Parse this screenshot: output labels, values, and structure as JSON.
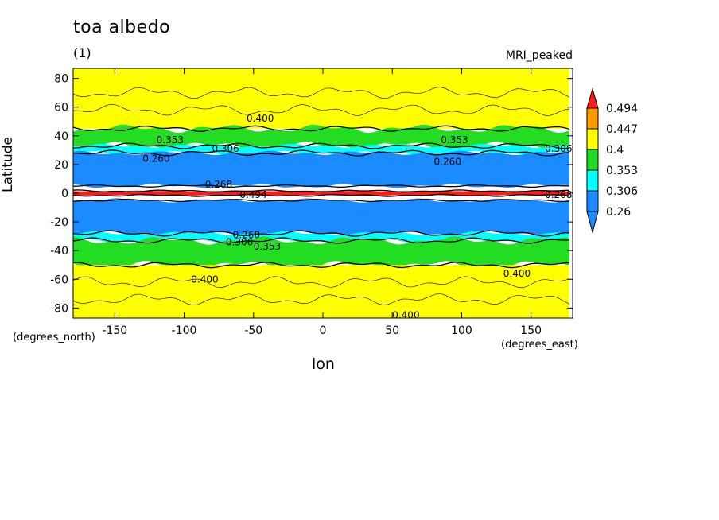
{
  "header": {
    "title": "toa albedo",
    "subtitle": "(1)",
    "model": "MRI_peaked"
  },
  "axes": {
    "xlabel": "lon",
    "ylabel": "Latitude",
    "x_units": "(degrees_east)",
    "y_units": "(degrees_north)"
  },
  "chart_data": {
    "type": "heatmap",
    "title": "toa albedo",
    "subtitle": "(1)",
    "xlabel": "lon",
    "ylabel": "Latitude",
    "xlim": [
      -180,
      180
    ],
    "ylim": [
      -87,
      87
    ],
    "x_ticks": [
      -150,
      -100,
      -50,
      0,
      50,
      100,
      150
    ],
    "y_ticks": [
      -80,
      -60,
      -40,
      -20,
      0,
      20,
      40,
      60,
      80
    ],
    "levels": [
      0.26,
      0.306,
      0.353,
      0.4,
      0.447,
      0.494
    ],
    "level_labels": [
      "0.26",
      "0.306",
      "0.353",
      "0.4",
      "0.447",
      "0.494"
    ],
    "colors": {
      "below_0.26": "#1a8cff",
      "0.26-0.306": "#1a8cff",
      "0.306-0.353": "#00ffff",
      "0.353-0.4": "#22dd22",
      "0.4-0.447": "#ffff00",
      "0.447-0.494": "#ff9900",
      "above_0.494": "#ff1a1a"
    },
    "contour_labels": [
      "0.400",
      "0.353",
      "0.306",
      "0.260",
      "0.268",
      "0.494"
    ],
    "zonal_bands": [
      {
        "lat_from": 45,
        "lat_to": 87,
        "value_range": "0.4-0.447"
      },
      {
        "lat_from": 33,
        "lat_to": 45,
        "value_range": "0.353-0.4"
      },
      {
        "lat_from": 28,
        "lat_to": 33,
        "value_range": "0.306-0.353"
      },
      {
        "lat_from": 5,
        "lat_to": 28,
        "value_range": "0.26-0.306"
      },
      {
        "lat_from": -1.5,
        "lat_to": 1.5,
        "value_range": "above_0.494"
      },
      {
        "lat_from": -28,
        "lat_to": -5,
        "value_range": "0.26-0.306"
      },
      {
        "lat_from": -33,
        "lat_to": -28,
        "value_range": "0.306-0.353"
      },
      {
        "lat_from": -50,
        "lat_to": -33,
        "value_range": "0.353-0.4"
      },
      {
        "lat_from": -87,
        "lat_to": -50,
        "value_range": "0.4-0.447"
      }
    ],
    "grid": false,
    "legend": "right"
  }
}
